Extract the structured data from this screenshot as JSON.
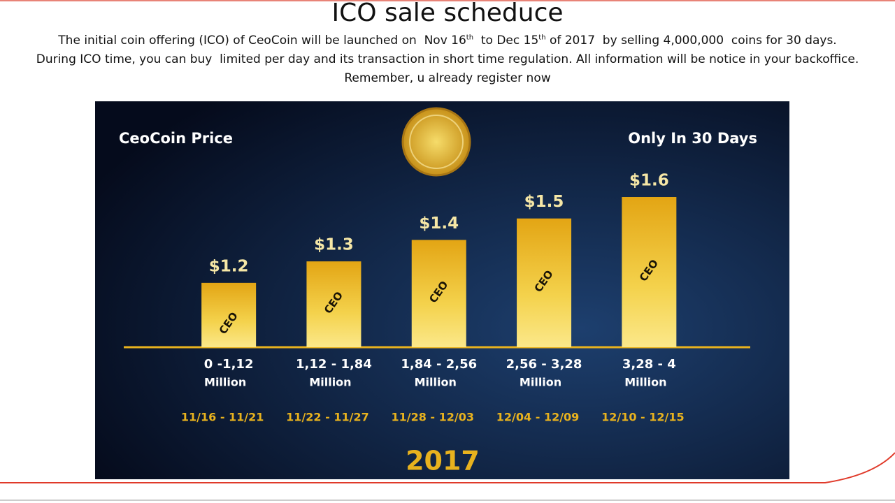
{
  "header": {
    "title": "ICO sale scheduce",
    "line1": [
      "The initial coin offering (ICO) of CeoCoin will be launched on  Nov 16",
      "th",
      "  to Dec 15",
      "th",
      " of 2017  by selling 4,000,000  coins for 30 days."
    ],
    "line2": "During ICO time, you can buy  limited per day and its transaction in short time regulation. All information will be notice in your backoffice.",
    "line3": "Remember, u already register now"
  },
  "chart_data": {
    "type": "bar",
    "title": "CeoCoin Price",
    "subtitle": "Only  In 30 Days",
    "categories": [
      "0 -1,12",
      "1,12 - 1,84",
      "1,84 - 2,56",
      "2,56 - 3,28",
      "3,28 - 4"
    ],
    "category_unit": "Million",
    "periods": [
      "11/16 - 11/21",
      "11/22 - 11/27",
      "11/28 - 12/03",
      "12/04 - 12/09",
      "12/10 - 12/15"
    ],
    "year": "2017",
    "bar_text": "CEO",
    "values": [
      1.2,
      1.3,
      1.4,
      1.5,
      1.6
    ],
    "value_labels": [
      "$1.2",
      "$1.3",
      "$1.4",
      "$1.5",
      "$1.6"
    ],
    "color": "#e8b21e",
    "ylim": [
      0.9,
      1.6
    ]
  }
}
